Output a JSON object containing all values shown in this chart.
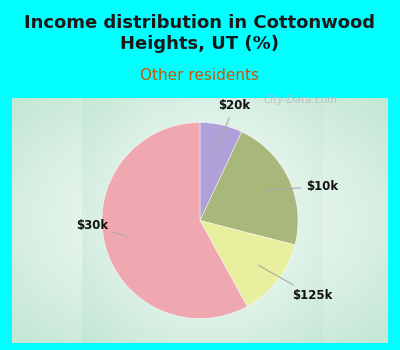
{
  "title": "Income distribution in Cottonwood\nHeights, UT (%)",
  "subtitle": "Other residents",
  "title_color": "#1a1a1a",
  "subtitle_color": "#cc5500",
  "bg_color": "#00ffff",
  "slices": [
    {
      "label": "$20k",
      "value": 7,
      "color": "#b0a0d8"
    },
    {
      "label": "$10k",
      "value": 22,
      "color": "#a8b87a"
    },
    {
      "label": "$125k",
      "value": 13,
      "color": "#e8f0a0"
    },
    {
      "label": "$30k",
      "value": 58,
      "color": "#f0a8b0"
    }
  ],
  "watermark": "City-Data.com",
  "label_fontsize": 8.5,
  "title_fontsize": 13,
  "subtitle_fontsize": 11,
  "gradient_left": "#c8e8d8",
  "gradient_center": "#e8f4ee",
  "gradient_right": "#d0e8e0",
  "gradient_top": "#e0f0f8",
  "gradient_bottom": "#c8e8d0"
}
